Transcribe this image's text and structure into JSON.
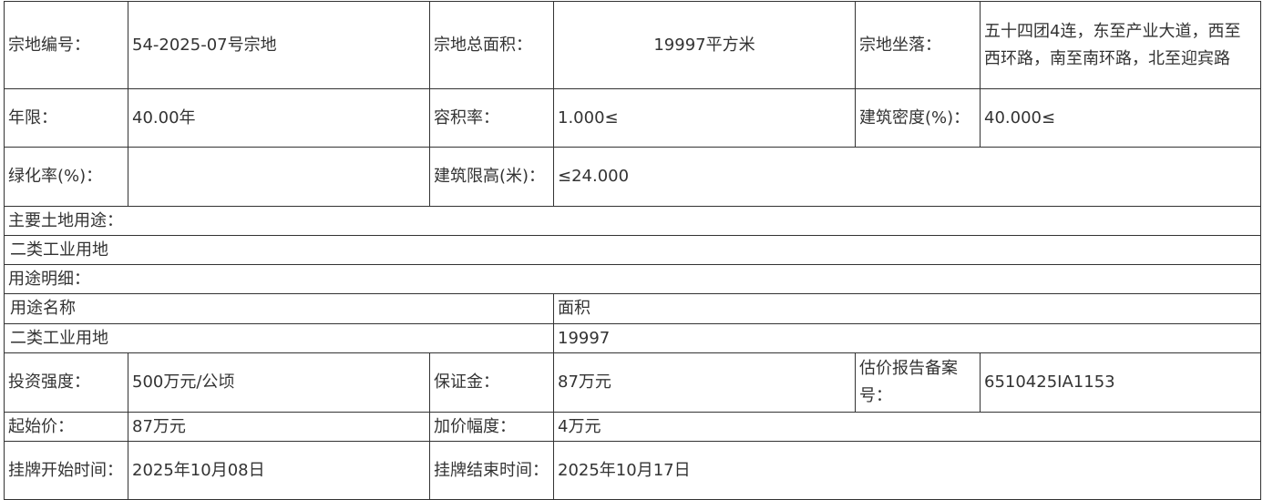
{
  "rows": [
    [
      {
        "t": "宗地编号："
      },
      {
        "t": "54-2025-07号宗地"
      },
      {
        "t": "宗地总面积："
      },
      {
        "t": "19997平方米"
      },
      {
        "t": "宗地坐落："
      },
      {
        "t": "五十四团4连，东至产业大道，西至西环路，南至南环路，北至迎宾路"
      }
    ],
    [
      {
        "t": "年限："
      },
      {
        "t": "40.00年"
      },
      {
        "t": "容积率："
      },
      {
        "t": "1.000≤"
      },
      {
        "t": "建筑密度(%)："
      },
      {
        "t": "40.000≤"
      }
    ],
    [
      {
        "t": "绿化率(%)："
      },
      {
        "t": ""
      },
      {
        "t": "建筑限高(米)："
      },
      {
        "t": "≤24.000"
      }
    ],
    [
      {
        "t": "主要土地用途："
      }
    ],
    [
      {
        "t": "二类工业用地"
      }
    ],
    [
      {
        "t": "用途明细："
      }
    ],
    [
      {
        "t": "用途名称"
      },
      {
        "t": "面积"
      }
    ],
    [
      {
        "t": "二类工业用地"
      },
      {
        "t": "19997"
      }
    ],
    [
      {
        "t": "投资强度："
      },
      {
        "t": "500万元/公顷"
      },
      {
        "t": "保证金："
      },
      {
        "t": "87万元"
      },
      {
        "t": "估价报告备案号："
      },
      {
        "t": "6510425IA1153"
      }
    ],
    [
      {
        "t": "起始价："
      },
      {
        "t": "87万元"
      },
      {
        "t": "加价幅度："
      },
      {
        "t": "4万元"
      }
    ],
    [
      {
        "t": "挂牌开始时间："
      },
      {
        "t": "2025年10月08日"
      },
      {
        "t": "挂牌结束时间："
      },
      {
        "t": "2025年10月17日"
      }
    ]
  ]
}
